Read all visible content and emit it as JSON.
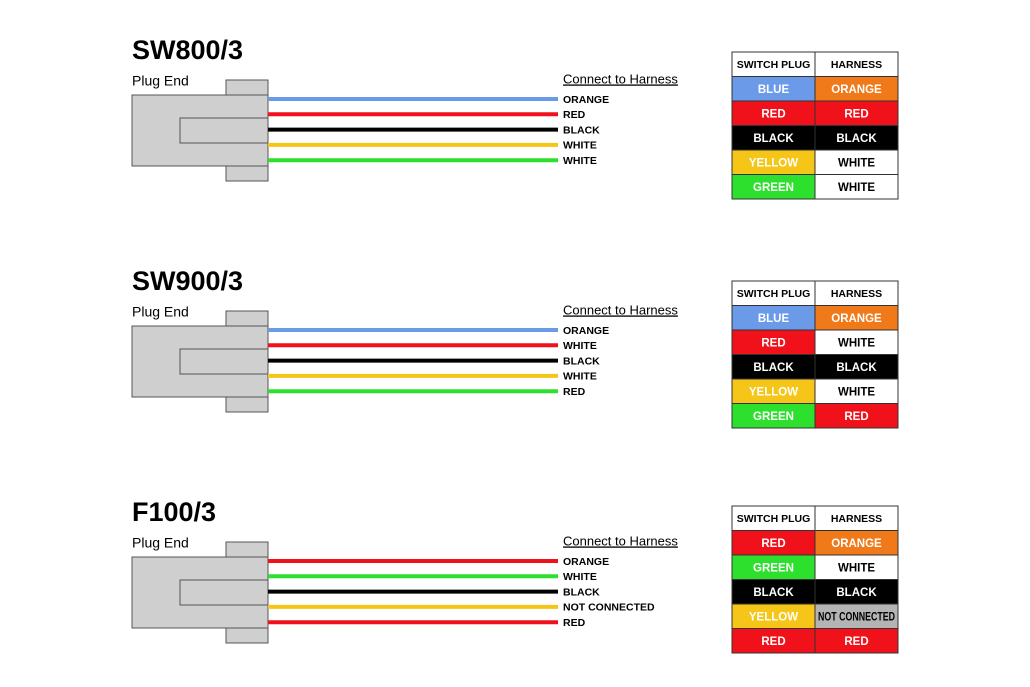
{
  "sections": [
    {
      "title": "SW800/3",
      "plug_label": "Plug End",
      "harness_label": "Connect to Harness",
      "wires": [
        {
          "label": "ORANGE",
          "color": "#6a9ae8"
        },
        {
          "label": "RED",
          "color": "#f0111a"
        },
        {
          "label": "BLACK",
          "color": "#000000"
        },
        {
          "label": "WHITE",
          "color": "#f5c518"
        },
        {
          "label": "WHITE",
          "color": "#2ee02e"
        }
      ],
      "table": {
        "headers": [
          "SWITCH PLUG",
          "HARNESS"
        ],
        "rows": [
          [
            {
              "text": "BLUE",
              "color": "#6a9ae8"
            },
            {
              "text": "ORANGE",
              "color": "#f07a1a"
            }
          ],
          [
            {
              "text": "RED",
              "color": "#f0111a"
            },
            {
              "text": "RED",
              "color": "#f0111a"
            }
          ],
          [
            {
              "text": "BLACK",
              "color": "#000000"
            },
            {
              "text": "BLACK",
              "color": "#000000"
            }
          ],
          [
            {
              "text": "YELLOW",
              "color": "#f5c518"
            },
            {
              "text": "WHITE",
              "color": "#ffffff"
            }
          ],
          [
            {
              "text": "GREEN",
              "color": "#2ee02e"
            },
            {
              "text": "WHITE",
              "color": "#ffffff"
            }
          ]
        ]
      }
    },
    {
      "title": "SW900/3",
      "plug_label": "Plug End",
      "harness_label": "Connect to Harness",
      "wires": [
        {
          "label": "ORANGE",
          "color": "#6a9ae8"
        },
        {
          "label": "WHITE",
          "color": "#f0111a"
        },
        {
          "label": "BLACK",
          "color": "#000000"
        },
        {
          "label": "WHITE",
          "color": "#f5c518"
        },
        {
          "label": "RED",
          "color": "#2ee02e"
        }
      ],
      "table": {
        "headers": [
          "SWITCH PLUG",
          "HARNESS"
        ],
        "rows": [
          [
            {
              "text": "BLUE",
              "color": "#6a9ae8"
            },
            {
              "text": "ORANGE",
              "color": "#f07a1a"
            }
          ],
          [
            {
              "text": "RED",
              "color": "#f0111a"
            },
            {
              "text": "WHITE",
              "color": "#ffffff"
            }
          ],
          [
            {
              "text": "BLACK",
              "color": "#000000"
            },
            {
              "text": "BLACK",
              "color": "#000000"
            }
          ],
          [
            {
              "text": "YELLOW",
              "color": "#f5c518"
            },
            {
              "text": "WHITE",
              "color": "#ffffff"
            }
          ],
          [
            {
              "text": "GREEN",
              "color": "#2ee02e"
            },
            {
              "text": "RED",
              "color": "#f0111a"
            }
          ]
        ]
      }
    },
    {
      "title": "F100/3",
      "plug_label": "Plug End",
      "harness_label": "Connect to Harness",
      "wires": [
        {
          "label": "ORANGE",
          "color": "#f0111a"
        },
        {
          "label": "WHITE",
          "color": "#2ee02e"
        },
        {
          "label": "BLACK",
          "color": "#000000"
        },
        {
          "label": "NOT CONNECTED",
          "color": "#f5c518"
        },
        {
          "label": "RED",
          "color": "#f0111a"
        }
      ],
      "table": {
        "headers": [
          "SWITCH PLUG",
          "HARNESS"
        ],
        "rows": [
          [
            {
              "text": "RED",
              "color": "#f0111a"
            },
            {
              "text": "ORANGE",
              "color": "#f07a1a"
            }
          ],
          [
            {
              "text": "GREEN",
              "color": "#2ee02e"
            },
            {
              "text": "WHITE",
              "color": "#ffffff"
            }
          ],
          [
            {
              "text": "BLACK",
              "color": "#000000"
            },
            {
              "text": "BLACK",
              "color": "#000000"
            }
          ],
          [
            {
              "text": "YELLOW",
              "color": "#f5c518"
            },
            {
              "text": "NOT CONNECTED",
              "color": "#b4b4b4"
            }
          ],
          [
            {
              "text": "RED",
              "color": "#f0111a"
            },
            {
              "text": "RED",
              "color": "#f0111a"
            }
          ]
        ]
      }
    }
  ]
}
